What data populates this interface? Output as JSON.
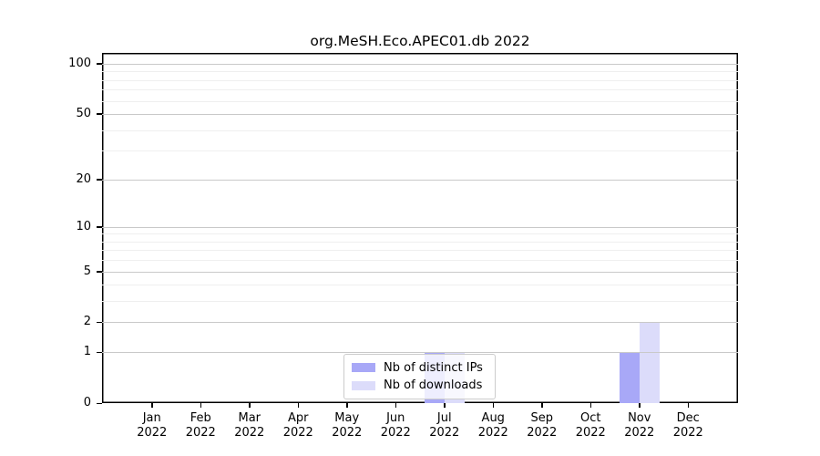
{
  "chart_data": {
    "type": "bar",
    "title": "org.MeSH.Eco.APEC01.db 2022",
    "categories": [
      "Jan",
      "Feb",
      "Mar",
      "Apr",
      "May",
      "Jun",
      "Jul",
      "Aug",
      "Sep",
      "Oct",
      "Nov",
      "Dec"
    ],
    "x_year": "2022",
    "series": [
      {
        "name": "Nb of distinct IPs",
        "color": "#a8a8f7",
        "values": [
          0,
          0,
          0,
          0,
          0,
          0,
          1,
          0,
          0,
          0,
          1,
          0
        ]
      },
      {
        "name": "Nb of downloads",
        "color": "#dcdcfa",
        "values": [
          0,
          0,
          0,
          0,
          0,
          0,
          1,
          0,
          0,
          0,
          2,
          0
        ]
      }
    ],
    "y_axis": {
      "scale": "log1p",
      "ticks": [
        0,
        1,
        2,
        5,
        10,
        20,
        50,
        100
      ],
      "minor_ticks": [
        3,
        4,
        6,
        7,
        8,
        9,
        30,
        40,
        60,
        70,
        80,
        90
      ],
      "max": 116
    },
    "xlabel": "",
    "ylabel": "",
    "grid": true,
    "legend": {
      "position": "lower center",
      "entries": [
        "Nb of distinct IPs",
        "Nb of downloads"
      ]
    }
  },
  "colors": {
    "spine": "#000000",
    "grid_major": "#c9c9c9",
    "grid_minor": "#efefef",
    "legend_border": "#cccccc",
    "background": "#ffffff"
  }
}
